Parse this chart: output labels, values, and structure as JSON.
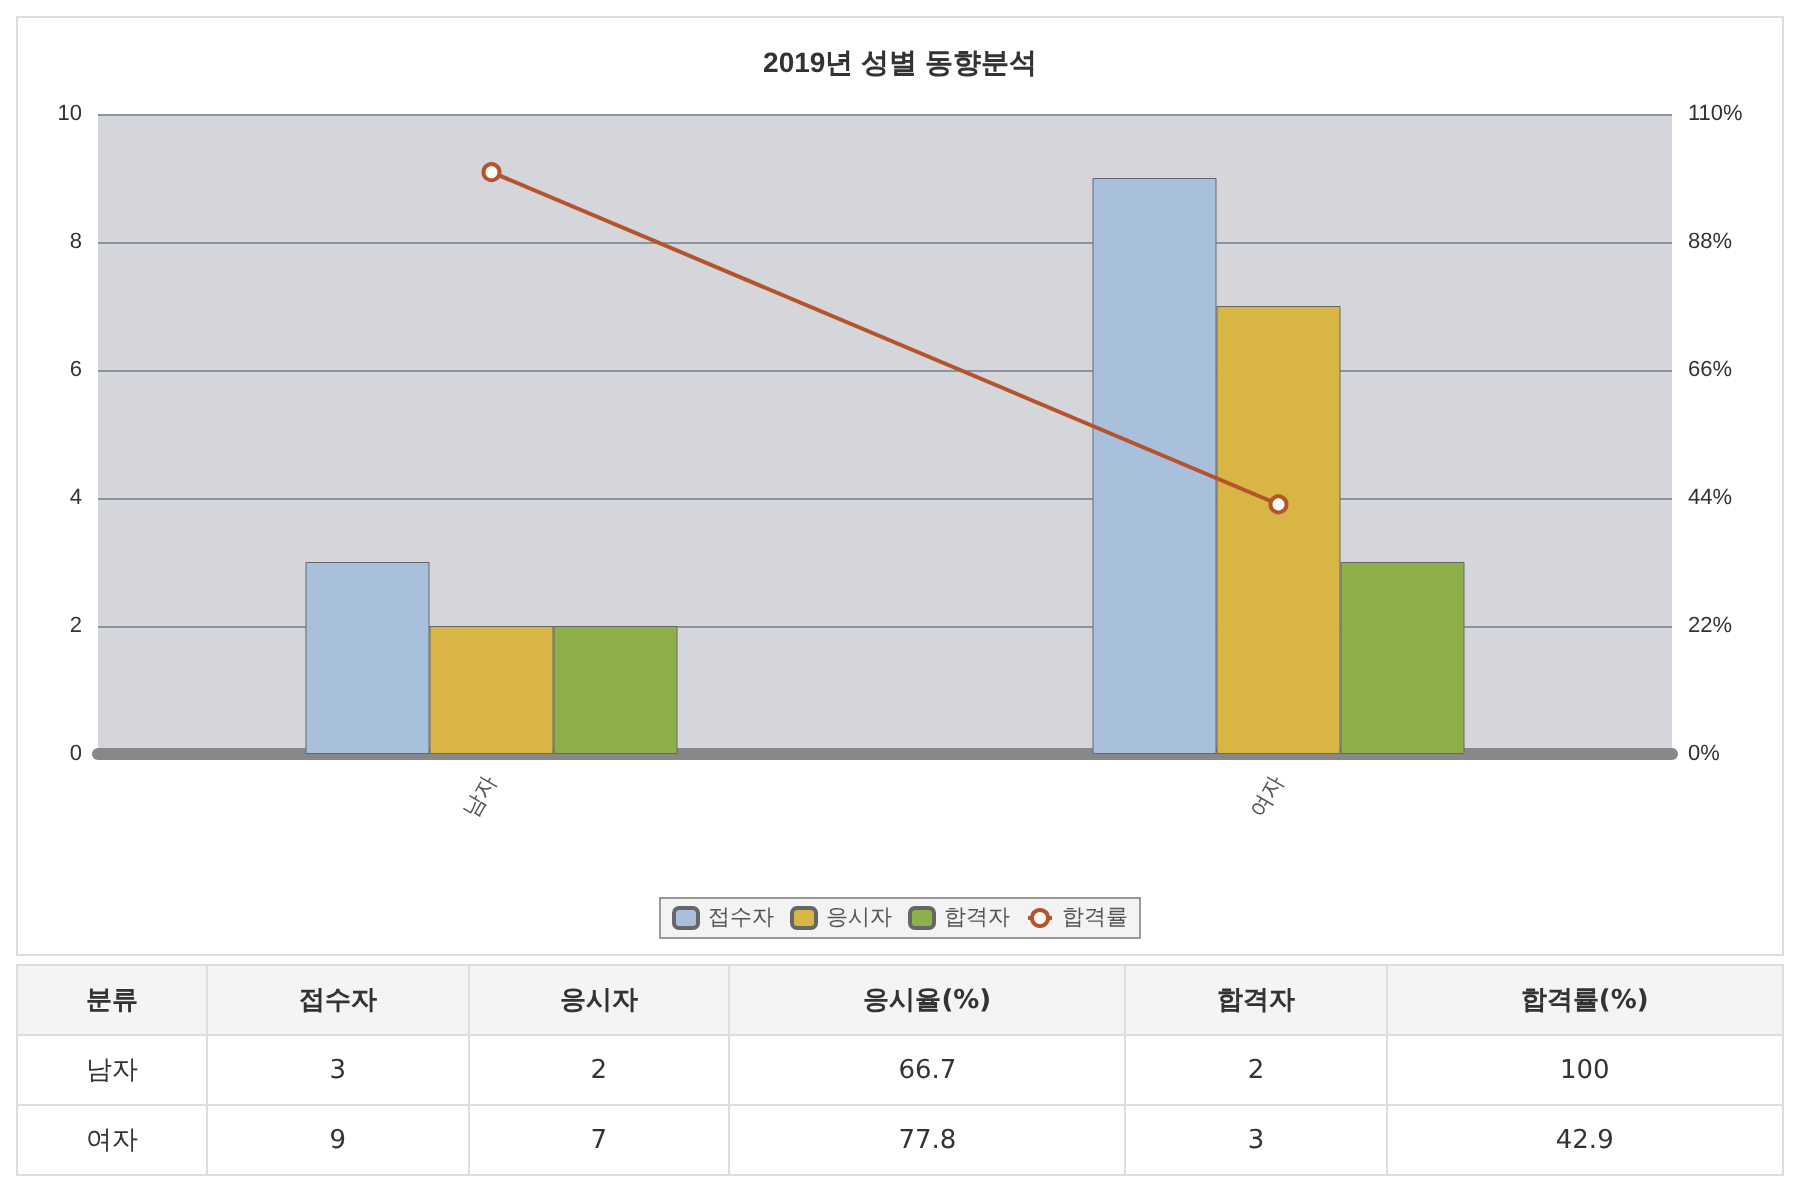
{
  "chart_data": [
    {
      "type": "bar",
      "title": "2019년 성별 동향분석",
      "categories": [
        "남자",
        "여자"
      ],
      "series": [
        {
          "name": "접수자",
          "color": "#a9c0dc",
          "values": [
            3,
            9
          ]
        },
        {
          "name": "응시자",
          "color": "#d8b545",
          "values": [
            2,
            7
          ]
        },
        {
          "name": "합격자",
          "color": "#8db04a",
          "values": [
            2,
            3
          ]
        },
        {
          "name": "합격률",
          "type": "line",
          "axis": "y2",
          "color": "#b5532a",
          "values": [
            100,
            42.9
          ]
        }
      ],
      "ylim": [
        0,
        10
      ],
      "yticks": [
        0,
        2,
        4,
        6,
        8,
        10
      ],
      "y2lim": [
        0,
        110
      ],
      "y2ticks": [
        {
          "value": 0,
          "label": "0%"
        },
        {
          "value": 22,
          "label": "22%"
        },
        {
          "value": 44,
          "label": "44%"
        },
        {
          "value": 66,
          "label": "66%"
        },
        {
          "value": 88,
          "label": "88%"
        },
        {
          "value": 110,
          "label": "110%"
        }
      ],
      "grid": "y",
      "legend": "bottom",
      "marker": "circle"
    },
    {
      "type": "other",
      "annotations": [
        "분류"
      ],
      "categories": [
        "남자",
        "여자"
      ],
      "data_labels": true,
      "series": [
        {
          "name": "접수자",
          "values": [
            3,
            9
          ]
        },
        {
          "name": "응시자",
          "values": [
            2,
            7
          ]
        },
        {
          "name": "응시율(%)",
          "values": [
            66.7,
            77.8
          ]
        },
        {
          "name": "합격자",
          "values": [
            2,
            3
          ]
        },
        {
          "name": "합격률(%)",
          "values": [
            100,
            42.9
          ]
        }
      ]
    }
  ]
}
